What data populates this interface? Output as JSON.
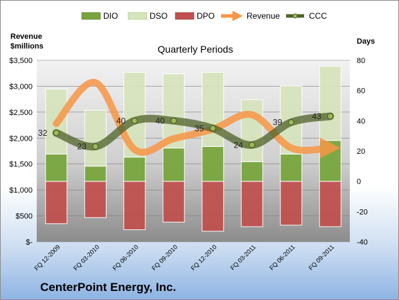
{
  "chart_data": {
    "type": "bar",
    "title": "Quarterly Periods",
    "company": "CenterPoint Energy, Inc.",
    "left_axis_title": [
      "Revenue",
      "$millions"
    ],
    "right_axis_title": "Days",
    "left_ticks": [
      "$-",
      "$500",
      "$1,000",
      "$1,500",
      "$2,000",
      "$2,500",
      "$3,000",
      "$3,500"
    ],
    "right_ticks": [
      "-40",
      "-20",
      "0",
      "20",
      "40",
      "60",
      "80"
    ],
    "left_ylim": [
      0,
      3500
    ],
    "right_ylim": [
      -40,
      80
    ],
    "grid": true,
    "legend_position": "top",
    "categories": [
      "FQ 12-2009",
      "FQ 03-2010",
      "FQ 06-2010",
      "FQ 09-2010",
      "FQ 12-2010",
      "FQ 03-2011",
      "FQ 06-2011",
      "FQ 09-2011"
    ],
    "series": [
      {
        "name": "DIO",
        "kind": "stacked-bar",
        "axis": "right",
        "color": "#77a53b",
        "values": [
          18,
          10,
          16,
          22,
          23,
          13,
          18,
          27
        ]
      },
      {
        "name": "DSO",
        "kind": "stacked-bar",
        "axis": "right",
        "color": "#d7e4bd",
        "values": [
          43,
          37,
          56,
          49,
          49,
          41,
          45,
          49
        ]
      },
      {
        "name": "DPO",
        "kind": "stacked-bar",
        "axis": "right",
        "color": "#c0504d",
        "values": [
          -28,
          -24,
          -32,
          -27,
          -33,
          -30,
          -29,
          -30
        ]
      },
      {
        "name": "Revenue",
        "kind": "line",
        "axis": "left",
        "color": "#f79646",
        "values": [
          2280,
          3070,
          1780,
          1990,
          2170,
          2450,
          1810,
          1810
        ]
      },
      {
        "name": "CCC",
        "kind": "line",
        "axis": "right",
        "color": "#4f6228",
        "values": [
          32,
          23,
          40,
          40,
          35,
          24,
          39,
          43
        ]
      }
    ],
    "data_labels": [
      "32",
      "23",
      "40",
      "40",
      "35",
      "24",
      "39",
      "43"
    ]
  }
}
